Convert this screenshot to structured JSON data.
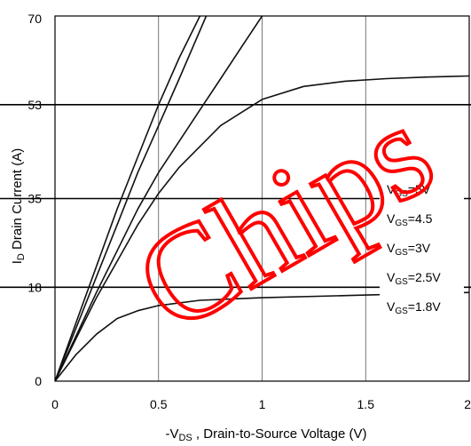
{
  "chart_data": {
    "type": "line",
    "xlabel": {
      "prefix": "-V",
      "sub": "DS",
      "rest": " , Drain-to-Source Voltage (V)"
    },
    "ylabel": {
      "prefix": "I",
      "sub": "D",
      "rest": " Drain Current (A)"
    },
    "xlim": [
      0,
      2
    ],
    "ylim": [
      0,
      70
    ],
    "x_ticks": [
      {
        "value": 0,
        "label": "0"
      },
      {
        "value": 0.5,
        "label": "0.5"
      },
      {
        "value": 1,
        "label": "1"
      },
      {
        "value": 1.5,
        "label": "1.5"
      },
      {
        "value": 2,
        "label": "2"
      }
    ],
    "y_ticks": [
      {
        "value": 0,
        "label": "0"
      },
      {
        "value": 18,
        "label": "18"
      },
      {
        "value": 35,
        "label": "35"
      },
      {
        "value": 53,
        "label": "53"
      },
      {
        "value": 70,
        "label": "70"
      }
    ],
    "grid": true,
    "legend_position": "right",
    "series": [
      {
        "name": {
          "prefix": "V",
          "sub": "GS",
          "rest": "=5V"
        },
        "x": [
          0,
          0.1,
          0.2,
          0.3,
          0.4,
          0.5,
          0.6,
          0.7
        ],
        "y": [
          0,
          11,
          22,
          33,
          43,
          53,
          62,
          70
        ]
      },
      {
        "name": {
          "prefix": "V",
          "sub": "GS",
          "rest": "=4.5"
        },
        "x": [
          0,
          0.1,
          0.2,
          0.3,
          0.4,
          0.5,
          0.6,
          0.73
        ],
        "y": [
          0,
          10,
          20,
          30,
          40,
          49,
          58,
          70
        ]
      },
      {
        "name": {
          "prefix": "V",
          "sub": "GS",
          "rest": "=3V"
        },
        "x": [
          0,
          0.1,
          0.2,
          0.3,
          0.4,
          0.5,
          0.6,
          0.7,
          0.8,
          0.9,
          1.0
        ],
        "y": [
          0,
          8.5,
          17,
          25,
          33,
          40,
          46,
          52,
          58,
          64,
          70
        ]
      },
      {
        "name": {
          "prefix": "V",
          "sub": "GS",
          "rest": "=2.5V"
        },
        "x": [
          0,
          0.1,
          0.2,
          0.3,
          0.4,
          0.5,
          0.6,
          0.8,
          1.0,
          1.2,
          1.4,
          1.6,
          1.8,
          2.0
        ],
        "y": [
          0,
          8,
          16,
          23,
          30,
          36,
          41,
          49,
          54,
          56.5,
          57.5,
          58,
          58.3,
          58.5
        ]
      },
      {
        "name": {
          "prefix": "V",
          "sub": "GS",
          "rest": "=1.8V"
        },
        "x": [
          0,
          0.05,
          0.1,
          0.2,
          0.3,
          0.4,
          0.5,
          0.7,
          1.0,
          1.5,
          2.0
        ],
        "y": [
          0,
          2.5,
          5,
          9,
          12,
          13.5,
          14.5,
          15.5,
          16,
          16.5,
          17
        ]
      }
    ],
    "annotation_lines": [
      53,
      35,
      18
    ]
  },
  "watermark": {
    "text": "Chips",
    "color": "#ff0000"
  }
}
